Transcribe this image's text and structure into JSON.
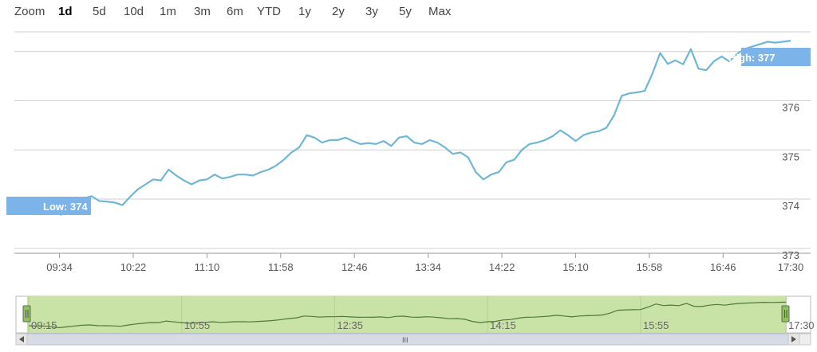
{
  "zoom": {
    "label": "Zoom",
    "options": [
      "1d",
      "5d",
      "10d",
      "1m",
      "3m",
      "6m",
      "YTD",
      "1y",
      "2y",
      "3y",
      "5y",
      "Max"
    ],
    "selected": "1d"
  },
  "colors": {
    "line": "#6fb7d5",
    "flag": "#7cb3e8",
    "navigator_fill": "#c9e2a6",
    "navigator_line": "#4f7a3a",
    "handle": "#8fc35a",
    "scrollbar": "#d6dbe6",
    "grid": "#cfcfcf"
  },
  "flags": {
    "low": "Low: 374",
    "high": "High: 377"
  },
  "scrollbar": {
    "grip_label": "III",
    "left_arrow_icon": "arrow-left-icon",
    "right_arrow_icon": "arrow-right-icon"
  },
  "navigator": {
    "tick_labels": [
      "09:15",
      "10:55",
      "12:35",
      "14:15",
      "15:55",
      "17:30"
    ]
  },
  "chart_data": {
    "type": "line",
    "title": "",
    "xlabel": "",
    "ylabel": "",
    "x_tick_labels": [
      "09:34",
      "10:22",
      "11:10",
      "11:58",
      "12:46",
      "13:34",
      "14:22",
      "15:10",
      "15:58",
      "16:46",
      "17:30"
    ],
    "y_ticks": [
      373,
      374,
      375,
      376,
      377
    ],
    "ylim": [
      372.9,
      377.4
    ],
    "grid": true,
    "series": [
      {
        "x": [
          "09:15",
          "09:20",
          "09:25",
          "09:30",
          "09:35",
          "09:40",
          "09:45",
          "09:50",
          "09:55",
          "10:00",
          "10:05",
          "10:10",
          "10:15",
          "10:20",
          "10:25",
          "10:30",
          "10:35",
          "10:40",
          "10:45",
          "10:50",
          "10:55",
          "11:00",
          "11:05",
          "11:10",
          "11:15",
          "11:20",
          "11:25",
          "11:30",
          "11:35",
          "11:40",
          "11:45",
          "11:50",
          "11:55",
          "12:00",
          "12:05",
          "12:10",
          "12:15",
          "12:20",
          "12:25",
          "12:30",
          "12:35",
          "12:40",
          "12:45",
          "12:50",
          "12:55",
          "13:00",
          "13:05",
          "13:10",
          "13:15",
          "13:20",
          "13:25",
          "13:30",
          "13:35",
          "13:40",
          "13:45",
          "13:50",
          "13:55",
          "14:00",
          "14:05",
          "14:10",
          "14:15",
          "14:20",
          "14:25",
          "14:30",
          "14:35",
          "14:40",
          "14:45",
          "14:50",
          "14:55",
          "15:00",
          "15:05",
          "15:10",
          "15:15",
          "15:20",
          "15:25",
          "15:30",
          "15:35",
          "15:40",
          "15:45",
          "15:50",
          "15:55",
          "16:00",
          "16:05",
          "16:10",
          "16:15",
          "16:20",
          "16:25",
          "16:30",
          "16:35",
          "16:40",
          "16:45",
          "16:50",
          "16:55",
          "17:00",
          "17:05",
          "17:10",
          "17:15",
          "17:20",
          "17:25",
          "17:30"
        ],
        "values": [
          373.95,
          373.9,
          373.92,
          373.82,
          373.68,
          373.8,
          373.92,
          374.02,
          374.06,
          373.96,
          373.95,
          373.93,
          373.88,
          374.05,
          374.2,
          374.3,
          374.4,
          374.38,
          374.6,
          374.48,
          374.38,
          374.3,
          374.38,
          374.4,
          374.5,
          374.42,
          374.45,
          374.5,
          374.5,
          374.48,
          374.55,
          374.6,
          374.68,
          374.8,
          374.95,
          375.05,
          375.3,
          375.25,
          375.15,
          375.2,
          375.2,
          375.25,
          375.18,
          375.12,
          375.14,
          375.12,
          375.18,
          375.08,
          375.25,
          375.28,
          375.15,
          375.12,
          375.2,
          375.15,
          375.05,
          374.92,
          374.95,
          374.85,
          374.55,
          374.4,
          374.5,
          374.55,
          374.75,
          374.8,
          375.0,
          375.12,
          375.15,
          375.2,
          375.28,
          375.4,
          375.3,
          375.18,
          375.3,
          375.35,
          375.38,
          375.45,
          375.7,
          376.1,
          376.15,
          376.17,
          376.2,
          376.55,
          376.97,
          376.75,
          376.82,
          376.74,
          377.05,
          376.65,
          376.62,
          376.8,
          376.9,
          376.8,
          376.95,
          377.05,
          377.1,
          377.15,
          377.2,
          377.18,
          377.2,
          377.22
        ],
        "low": 374,
        "high": 377
      }
    ]
  }
}
